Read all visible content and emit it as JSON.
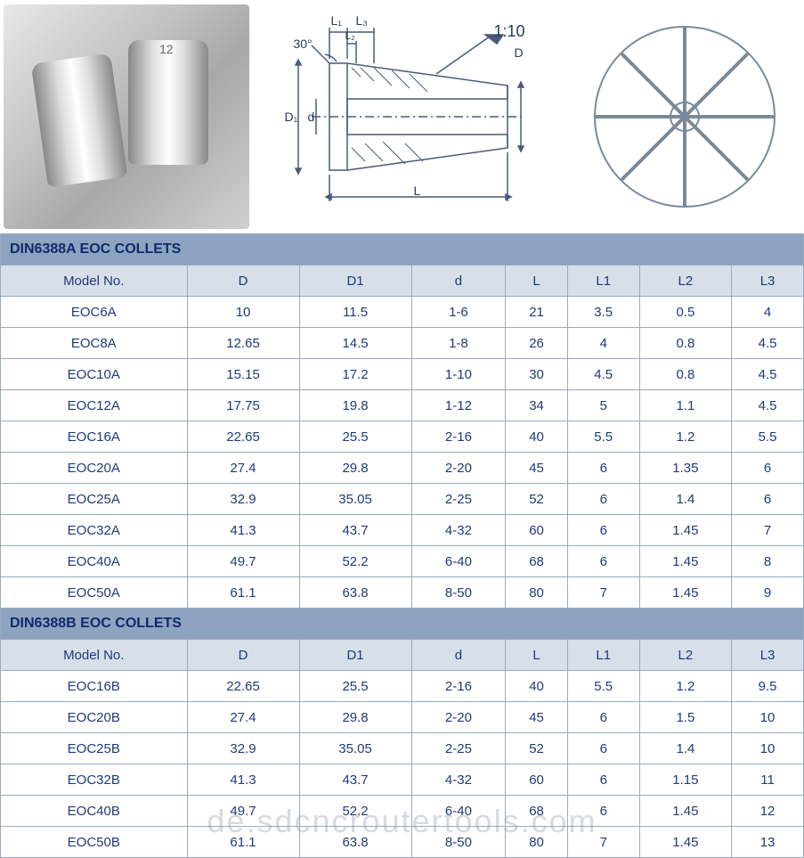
{
  "diagram": {
    "angle_label": "30°",
    "taper_label": "1:10",
    "dim_D": "D",
    "dim_D1": "D₁",
    "dim_d": "d",
    "dim_L": "L",
    "dim_L1": "L₁",
    "dim_L2": "L₂",
    "dim_L3": "L₃",
    "collet_top_label": "12",
    "diagram_line_color": "#4a5a7a",
    "front_view_color": "#8a96a6"
  },
  "tables": [
    {
      "title": "DIN6388A EOC COLLETS",
      "headers": [
        "Model No.",
        "D",
        "D1",
        "d",
        "L",
        "L1",
        "L2",
        "L3"
      ],
      "rows": [
        [
          "EOC6A",
          "10",
          "11.5",
          "1-6",
          "21",
          "3.5",
          "0.5",
          "4"
        ],
        [
          "EOC8A",
          "12.65",
          "14.5",
          "1-8",
          "26",
          "4",
          "0.8",
          "4.5"
        ],
        [
          "EOC10A",
          "15.15",
          "17.2",
          "1-10",
          "30",
          "4.5",
          "0.8",
          "4.5"
        ],
        [
          "EOC12A",
          "17.75",
          "19.8",
          "1-12",
          "34",
          "5",
          "1.1",
          "4.5"
        ],
        [
          "EOC16A",
          "22.65",
          "25.5",
          "2-16",
          "40",
          "5.5",
          "1.2",
          "5.5"
        ],
        [
          "EOC20A",
          "27.4",
          "29.8",
          "2-20",
          "45",
          "6",
          "1.35",
          "6"
        ],
        [
          "EOC25A",
          "32.9",
          "35.05",
          "2-25",
          "52",
          "6",
          "1.4",
          "6"
        ],
        [
          "EOC32A",
          "41.3",
          "43.7",
          "4-32",
          "60",
          "6",
          "1.45",
          "7"
        ],
        [
          "EOC40A",
          "49.7",
          "52.2",
          "6-40",
          "68",
          "6",
          "1.45",
          "8"
        ],
        [
          "EOC50A",
          "61.1",
          "63.8",
          "8-50",
          "80",
          "7",
          "1.45",
          "9"
        ]
      ]
    },
    {
      "title": "DIN6388B EOC COLLETS",
      "headers": [
        "Model No.",
        "D",
        "D1",
        "d",
        "L",
        "L1",
        "L2",
        "L3"
      ],
      "rows": [
        [
          "EOC16B",
          "22.65",
          "25.5",
          "2-16",
          "40",
          "5.5",
          "1.2",
          "9.5"
        ],
        [
          "EOC20B",
          "27.4",
          "29.8",
          "2-20",
          "45",
          "6",
          "1.5",
          "10"
        ],
        [
          "EOC25B",
          "32.9",
          "35.05",
          "2-25",
          "52",
          "6",
          "1.4",
          "10"
        ],
        [
          "EOC32B",
          "41.3",
          "43.7",
          "4-32",
          "60",
          "6",
          "1.15",
          "11"
        ],
        [
          "EOC40B",
          "49.7",
          "52.2",
          "6-40",
          "68",
          "6",
          "1.45",
          "12"
        ],
        [
          "EOC50B",
          "61.1",
          "63.8",
          "8-50",
          "80",
          "7",
          "1.45",
          "13"
        ]
      ]
    }
  ],
  "watermark": "de.sdcncroutertools.com",
  "styling": {
    "table_border_color": "#9aaabf",
    "section_header_bg": "#8ea3c0",
    "col_header_bg": "#d7dfe9",
    "text_color": "#1f3a7a",
    "font_size_body": 15,
    "font_size_section": 16
  }
}
